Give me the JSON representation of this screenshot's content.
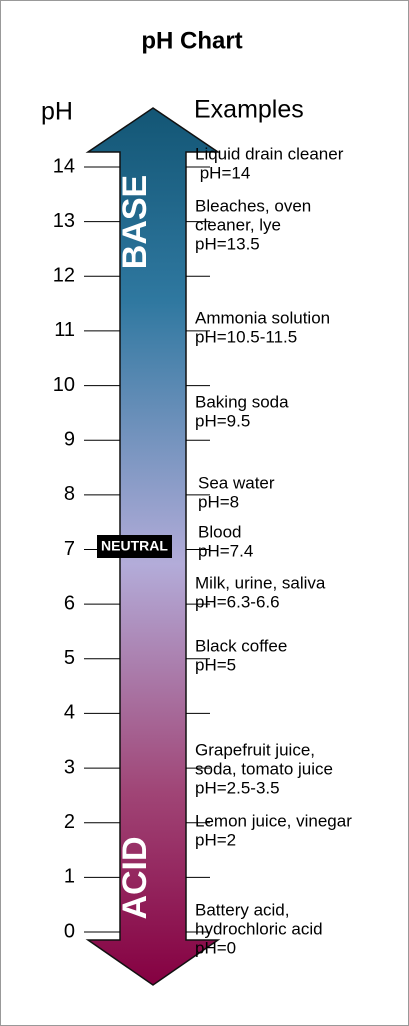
{
  "title": "pH Chart",
  "axis_label": "pH",
  "examples_label": "Examples",
  "ticks": [
    0,
    1,
    2,
    3,
    4,
    5,
    6,
    7,
    8,
    9,
    10,
    11,
    12,
    13,
    14
  ],
  "zones": {
    "base": "BASE",
    "neutral": "NEUTRAL",
    "acid": "ACID"
  },
  "examples": [
    {
      "lines": [
        "Liquid drain cleaner",
        " pH=14"
      ]
    },
    {
      "lines": [
        "Bleaches, oven",
        "cleaner, lye",
        "pH=13.5"
      ]
    },
    {
      "lines": [
        "Ammonia solution",
        "pH=10.5-11.5"
      ]
    },
    {
      "lines": [
        "Baking soda",
        "pH=9.5"
      ]
    },
    {
      "lines": [
        "Sea water",
        "pH=8"
      ]
    },
    {
      "lines": [
        "Blood",
        "pH=7.4"
      ]
    },
    {
      "lines": [
        "Milk, urine, saliva",
        "pH=6.3-6.6"
      ]
    },
    {
      "lines": [
        "Black coffee",
        "pH=5"
      ]
    },
    {
      "lines": [
        "Grapefruit juice,",
        "soda, tomato juice",
        "pH=2.5-3.5"
      ]
    },
    {
      "lines": [
        "Lemon juice, vinegar",
        "pH=2"
      ]
    },
    {
      "lines": [
        "Battery acid,",
        "hydrochloric acid",
        "pH=0"
      ]
    }
  ]
}
